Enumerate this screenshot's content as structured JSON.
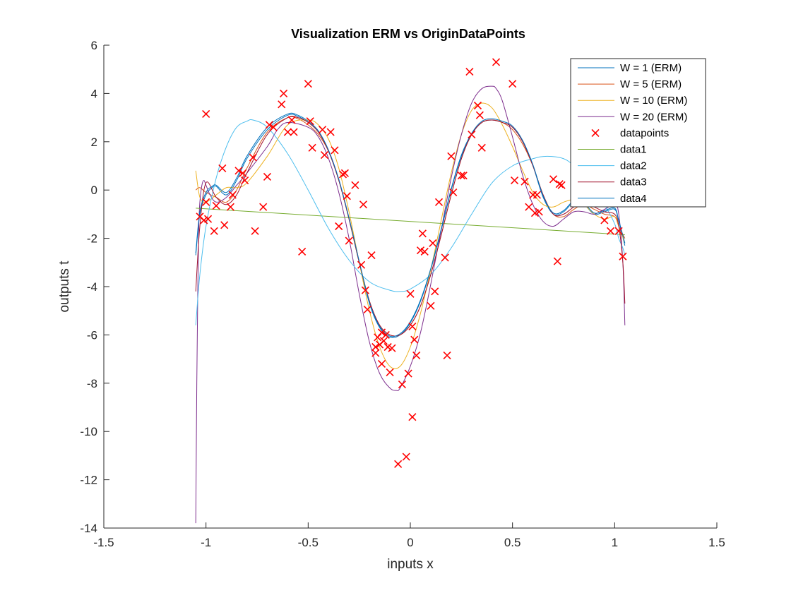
{
  "chart_data": {
    "type": "line",
    "title": "Visualization ERM vs OriginDataPoints",
    "xlabel": "inputs x",
    "ylabel": "outputs t",
    "xlim": [
      -1.5,
      1.5
    ],
    "ylim": [
      -14,
      6
    ],
    "xticks": [
      -1.5,
      -1,
      -0.5,
      0,
      0.5,
      1,
      1.5
    ],
    "xtick_labels": [
      "-1.5",
      "-1",
      "-0.5",
      "0",
      "0.5",
      "1",
      "1.5"
    ],
    "yticks": [
      -14,
      -12,
      -10,
      -8,
      -6,
      -4,
      -2,
      0,
      2,
      4,
      6
    ],
    "ytick_labels": [
      "-14",
      "-12",
      "-10",
      "-8",
      "-6",
      "-4",
      "-2",
      "0",
      "2",
      "4",
      "6"
    ],
    "grid": false,
    "legend_position": "top-right",
    "series": [
      {
        "name": "W = 1 (ERM)",
        "color": "#0072BD",
        "x": [
          -1.05,
          -1.03,
          -1.0,
          -0.97,
          -0.95,
          -0.9,
          -0.85,
          -0.8,
          -0.7,
          -0.6,
          -0.55,
          -0.5,
          -0.45,
          -0.4,
          -0.35,
          -0.3,
          -0.25,
          -0.2,
          -0.15,
          -0.1,
          -0.05,
          0.0,
          0.05,
          0.1,
          0.15,
          0.2,
          0.25,
          0.3,
          0.35,
          0.4,
          0.45,
          0.5,
          0.55,
          0.6,
          0.65,
          0.7,
          0.75,
          0.8,
          0.85,
          0.9,
          0.95,
          1.0,
          1.02,
          1.05
        ],
        "y": [
          -2.7,
          -1.0,
          -0.2,
          0.1,
          0.15,
          -0.2,
          0.4,
          1.3,
          2.5,
          3.1,
          3.05,
          2.8,
          2.4,
          1.6,
          0.4,
          -1.2,
          -3.0,
          -4.7,
          -5.7,
          -6.1,
          -6.0,
          -5.5,
          -4.6,
          -3.3,
          -1.7,
          0.0,
          1.4,
          2.3,
          2.8,
          2.9,
          2.8,
          2.6,
          2.0,
          1.0,
          -0.3,
          -1.0,
          -0.9,
          -0.5,
          -0.6,
          -1.0,
          -0.9,
          -0.8,
          -1.3,
          -2.3
        ]
      },
      {
        "name": "W = 5 (ERM)",
        "color": "#D95319",
        "x": [
          -1.05,
          -1.03,
          -1.0,
          -0.95,
          -0.9,
          -0.85,
          -0.8,
          -0.7,
          -0.6,
          -0.55,
          -0.5,
          -0.45,
          -0.4,
          -0.35,
          -0.3,
          -0.25,
          -0.2,
          -0.15,
          -0.1,
          -0.05,
          0.0,
          0.05,
          0.1,
          0.15,
          0.2,
          0.25,
          0.3,
          0.35,
          0.4,
          0.45,
          0.5,
          0.55,
          0.6,
          0.65,
          0.7,
          0.75,
          0.8,
          0.85,
          0.9,
          0.95,
          1.0,
          1.02,
          1.05
        ],
        "y": [
          0.0,
          0.1,
          -0.1,
          -0.3,
          -0.5,
          0.0,
          0.9,
          2.4,
          3.0,
          2.95,
          2.7,
          2.3,
          1.6,
          0.4,
          -1.2,
          -3.0,
          -4.6,
          -5.6,
          -6.0,
          -6.0,
          -5.6,
          -4.8,
          -3.5,
          -1.9,
          -0.2,
          1.3,
          2.3,
          2.8,
          2.9,
          2.8,
          2.5,
          1.9,
          1.0,
          -0.2,
          -1.0,
          -1.1,
          -0.8,
          -0.6,
          -0.8,
          -1.0,
          -1.1,
          -1.5,
          -2.0
        ]
      },
      {
        "name": "W = 10 (ERM)",
        "color": "#EDB120",
        "x": [
          -1.05,
          -1.03,
          -1.0,
          -0.95,
          -0.9,
          -0.85,
          -0.8,
          -0.7,
          -0.6,
          -0.5,
          -0.45,
          -0.4,
          -0.35,
          -0.3,
          -0.25,
          -0.2,
          -0.15,
          -0.1,
          -0.05,
          0.0,
          0.05,
          0.1,
          0.15,
          0.2,
          0.25,
          0.3,
          0.35,
          0.4,
          0.45,
          0.5,
          0.55,
          0.6,
          0.65,
          0.7,
          0.75,
          0.8,
          0.85,
          0.9,
          0.95,
          1.0,
          1.02,
          1.05
        ],
        "y": [
          0.8,
          -0.3,
          -0.5,
          -0.2,
          0.1,
          0.1,
          0.3,
          1.4,
          2.7,
          2.9,
          2.7,
          2.1,
          0.9,
          -0.9,
          -3.0,
          -5.0,
          -6.5,
          -7.3,
          -7.3,
          -6.5,
          -5.1,
          -3.3,
          -1.3,
          0.7,
          2.3,
          3.3,
          3.6,
          3.4,
          2.7,
          1.8,
          0.8,
          -0.1,
          -0.6,
          -0.7,
          -0.5,
          -0.4,
          -0.6,
          -1.0,
          -1.2,
          -1.1,
          -1.5,
          -2.2
        ]
      },
      {
        "name": "W = 20 (ERM)",
        "color": "#7E2F8E",
        "x": [
          -1.05,
          -1.045,
          -1.04,
          -1.035,
          -1.03,
          -1.02,
          -1.01,
          -1.0,
          -0.98,
          -0.95,
          -0.9,
          -0.85,
          -0.8,
          -0.7,
          -0.65,
          -0.6,
          -0.5,
          -0.45,
          -0.4,
          -0.35,
          -0.3,
          -0.25,
          -0.2,
          -0.15,
          -0.1,
          -0.07,
          -0.05,
          0.0,
          0.05,
          0.1,
          0.15,
          0.2,
          0.25,
          0.3,
          0.35,
          0.4,
          0.42,
          0.45,
          0.5,
          0.55,
          0.6,
          0.65,
          0.7,
          0.75,
          0.8,
          0.85,
          0.9,
          0.95,
          1.0,
          1.02,
          1.04,
          1.05
        ],
        "y": [
          -13.8,
          -8.0,
          -4.0,
          -1.5,
          -0.5,
          0.2,
          0.4,
          0.2,
          -0.2,
          -0.5,
          -0.3,
          0.2,
          0.7,
          1.8,
          2.5,
          2.8,
          2.6,
          2.2,
          1.3,
          -0.1,
          -2.0,
          -4.3,
          -6.3,
          -7.6,
          -8.2,
          -8.3,
          -8.2,
          -7.3,
          -5.9,
          -3.9,
          -1.7,
          0.5,
          2.3,
          3.6,
          4.2,
          4.3,
          4.2,
          3.7,
          2.2,
          0.6,
          -0.6,
          -1.3,
          -1.5,
          -1.2,
          -0.9,
          -0.9,
          -1.0,
          -0.8,
          -0.6,
          -1.0,
          -3.0,
          -5.6
        ]
      },
      {
        "name": "data1",
        "color": "#77AC30",
        "x": [
          -1.05,
          1.05
        ],
        "y": [
          -0.75,
          -1.85
        ]
      },
      {
        "name": "data2",
        "color": "#4DBEEE",
        "x": [
          -1.05,
          -1.03,
          -1.0,
          -0.95,
          -0.9,
          -0.85,
          -0.8,
          -0.77,
          -0.7,
          -0.6,
          -0.5,
          -0.4,
          -0.3,
          -0.2,
          -0.1,
          -0.05,
          0.0,
          0.1,
          0.2,
          0.3,
          0.4,
          0.5,
          0.6,
          0.67,
          0.75,
          0.8,
          0.85,
          0.9,
          0.95,
          1.0,
          1.02,
          1.04,
          1.05
        ],
        "y": [
          -5.6,
          -3.5,
          -1.5,
          0.5,
          1.8,
          2.6,
          2.85,
          2.9,
          2.6,
          1.5,
          0.0,
          -1.6,
          -2.9,
          -3.8,
          -4.15,
          -4.2,
          -4.1,
          -3.5,
          -2.4,
          -1.0,
          0.3,
          1.0,
          1.3,
          1.4,
          1.3,
          1.0,
          0.5,
          0.0,
          -0.6,
          -1.4,
          -2.0,
          -2.4,
          -2.7
        ]
      },
      {
        "name": "data3",
        "color": "#A2142F",
        "x": [
          -1.05,
          -1.03,
          -1.0,
          -0.95,
          -0.9,
          -0.85,
          -0.8,
          -0.7,
          -0.6,
          -0.55,
          -0.5,
          -0.45,
          -0.4,
          -0.35,
          -0.3,
          -0.25,
          -0.2,
          -0.15,
          -0.1,
          -0.05,
          0.0,
          0.05,
          0.1,
          0.15,
          0.2,
          0.25,
          0.3,
          0.35,
          0.4,
          0.45,
          0.5,
          0.55,
          0.6,
          0.65,
          0.7,
          0.75,
          0.8,
          0.85,
          0.9,
          0.95,
          1.0,
          1.02,
          1.04,
          1.05
        ],
        "y": [
          -4.2,
          -1.5,
          0.3,
          -0.3,
          -0.6,
          -0.2,
          0.7,
          2.3,
          3.0,
          3.0,
          2.8,
          2.4,
          1.6,
          0.4,
          -1.2,
          -3.0,
          -4.6,
          -5.6,
          -6.0,
          -6.0,
          -5.6,
          -4.8,
          -3.5,
          -1.9,
          -0.2,
          1.3,
          2.3,
          2.8,
          2.9,
          2.8,
          2.6,
          2.0,
          1.0,
          -0.2,
          -1.0,
          -1.0,
          -0.7,
          -0.5,
          -0.7,
          -0.9,
          -1.0,
          -1.5,
          -3.0,
          -4.7
        ]
      },
      {
        "name": "data4",
        "color": "#0072BD",
        "x": [
          -1.05,
          -1.03,
          -1.0,
          -0.97,
          -0.95,
          -0.9,
          -0.85,
          -0.8,
          -0.7,
          -0.6,
          -0.55,
          -0.5,
          -0.45,
          -0.4,
          -0.35,
          -0.3,
          -0.25,
          -0.2,
          -0.15,
          -0.1,
          -0.05,
          0.0,
          0.05,
          0.1,
          0.15,
          0.2,
          0.25,
          0.3,
          0.35,
          0.4,
          0.45,
          0.5,
          0.55,
          0.6,
          0.65,
          0.7,
          0.75,
          0.8,
          0.85,
          0.9,
          0.95,
          1.0,
          1.02,
          1.05
        ],
        "y": [
          -2.6,
          -0.9,
          -0.1,
          0.15,
          0.2,
          -0.1,
          0.5,
          1.4,
          2.6,
          3.15,
          3.1,
          2.85,
          2.45,
          1.65,
          0.45,
          -1.15,
          -2.95,
          -4.65,
          -5.65,
          -6.05,
          -5.95,
          -5.45,
          -4.55,
          -3.25,
          -1.65,
          0.05,
          1.45,
          2.35,
          2.85,
          2.95,
          2.85,
          2.65,
          2.05,
          1.05,
          -0.25,
          -0.95,
          -0.85,
          -0.45,
          -0.55,
          -0.95,
          -0.85,
          -0.75,
          -1.25,
          -2.2
        ]
      }
    ],
    "scatter": {
      "name": "datapoints",
      "color": "#FF0000",
      "marker": "x",
      "points": [
        [
          -1.03,
          -1.1
        ],
        [
          -1.01,
          -1.25
        ],
        [
          -1.0,
          -0.5
        ],
        [
          -1.0,
          3.15
        ],
        [
          -0.99,
          -1.2
        ],
        [
          -0.96,
          -1.7
        ],
        [
          -0.95,
          -0.65
        ],
        [
          -0.92,
          0.9
        ],
        [
          -0.91,
          -1.45
        ],
        [
          -0.88,
          -0.7
        ],
        [
          -0.87,
          -0.2
        ],
        [
          -0.84,
          0.8
        ],
        [
          -0.82,
          0.7
        ],
        [
          -0.81,
          0.4
        ],
        [
          -0.77,
          1.35
        ],
        [
          -0.76,
          -1.7
        ],
        [
          -0.72,
          -0.7
        ],
        [
          -0.7,
          0.55
        ],
        [
          -0.69,
          2.7
        ],
        [
          -0.67,
          2.6
        ],
        [
          -0.63,
          3.55
        ],
        [
          -0.62,
          4.0
        ],
        [
          -0.6,
          2.4
        ],
        [
          -0.58,
          2.9
        ],
        [
          -0.57,
          2.4
        ],
        [
          -0.53,
          -2.55
        ],
        [
          -0.5,
          4.4
        ],
        [
          -0.49,
          2.85
        ],
        [
          -0.48,
          1.75
        ],
        [
          -0.43,
          2.5
        ],
        [
          -0.42,
          1.45
        ],
        [
          -0.39,
          2.4
        ],
        [
          -0.37,
          1.65
        ],
        [
          -0.35,
          -1.5
        ],
        [
          -0.33,
          0.65
        ],
        [
          -0.32,
          0.7
        ],
        [
          -0.31,
          -0.25
        ],
        [
          -0.3,
          -2.1
        ],
        [
          -0.27,
          0.2
        ],
        [
          -0.24,
          -3.1
        ],
        [
          -0.23,
          -0.6
        ],
        [
          -0.22,
          -4.15
        ],
        [
          -0.21,
          -4.95
        ],
        [
          -0.19,
          -2.7
        ],
        [
          -0.17,
          -6.5
        ],
        [
          -0.17,
          -6.75
        ],
        [
          -0.16,
          -6.1
        ],
        [
          -0.15,
          -6.4
        ],
        [
          -0.14,
          -7.2
        ],
        [
          -0.14,
          -5.9
        ],
        [
          -0.13,
          -6.25
        ],
        [
          -0.12,
          -6.0
        ],
        [
          -0.11,
          -6.5
        ],
        [
          -0.1,
          -7.55
        ],
        [
          -0.09,
          -6.55
        ],
        [
          -0.06,
          -11.35
        ],
        [
          -0.04,
          -8.05
        ],
        [
          -0.02,
          -11.05
        ],
        [
          -0.01,
          -7.6
        ],
        [
          0.0,
          -4.3
        ],
        [
          0.01,
          -5.65
        ],
        [
          0.01,
          -9.4
        ],
        [
          0.02,
          -6.2
        ],
        [
          0.03,
          -6.85
        ],
        [
          0.05,
          -2.5
        ],
        [
          0.06,
          -1.8
        ],
        [
          0.07,
          -2.55
        ],
        [
          0.1,
          -4.8
        ],
        [
          0.11,
          -2.2
        ],
        [
          0.12,
          -4.2
        ],
        [
          0.14,
          -0.5
        ],
        [
          0.17,
          -2.8
        ],
        [
          0.18,
          -6.85
        ],
        [
          0.2,
          1.4
        ],
        [
          0.21,
          -0.1
        ],
        [
          0.25,
          0.6
        ],
        [
          0.26,
          0.6
        ],
        [
          0.29,
          4.9
        ],
        [
          0.3,
          2.3
        ],
        [
          0.33,
          3.5
        ],
        [
          0.34,
          3.1
        ],
        [
          0.35,
          1.75
        ],
        [
          0.42,
          5.3
        ],
        [
          0.5,
          4.4
        ],
        [
          0.51,
          0.4
        ],
        [
          0.56,
          0.35
        ],
        [
          0.58,
          -0.7
        ],
        [
          0.6,
          -0.2
        ],
        [
          0.61,
          -0.95
        ],
        [
          0.62,
          -0.2
        ],
        [
          0.63,
          -0.9
        ],
        [
          0.7,
          0.45
        ],
        [
          0.72,
          -2.95
        ],
        [
          0.73,
          0.25
        ],
        [
          0.74,
          0.2
        ],
        [
          0.95,
          -1.25
        ],
        [
          0.98,
          -1.7
        ],
        [
          1.02,
          -1.7
        ],
        [
          1.04,
          -2.75
        ]
      ]
    },
    "legend": [
      "W = 1 (ERM)",
      "W = 5 (ERM)",
      "W = 10 (ERM)",
      "W = 20 (ERM)",
      "datapoints",
      "data1",
      "data2",
      "data3",
      "data4"
    ]
  }
}
